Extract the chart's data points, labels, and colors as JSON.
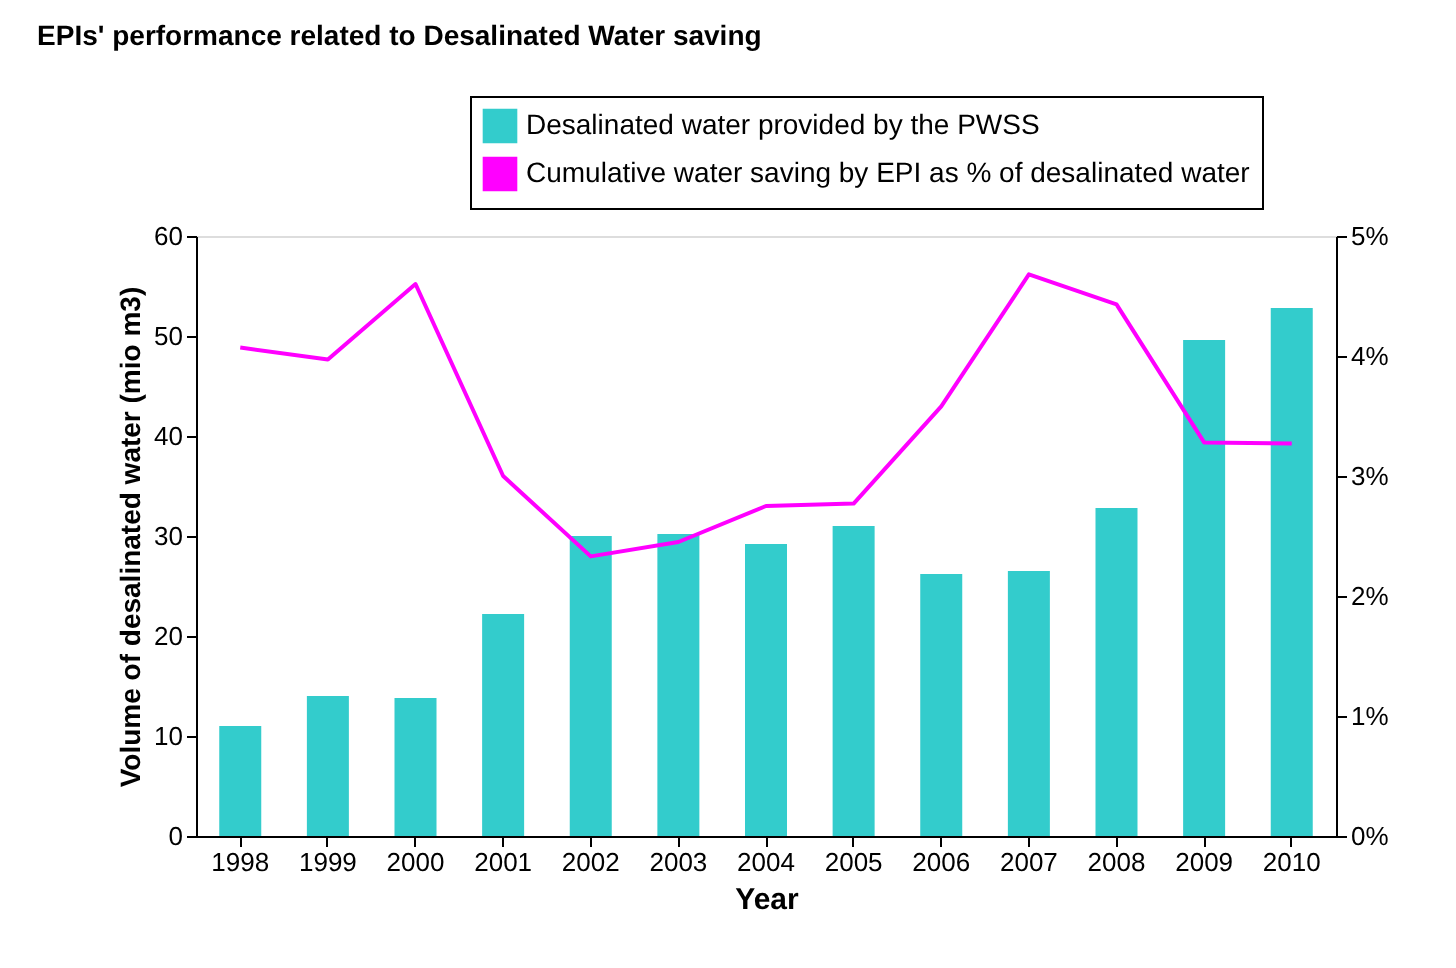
{
  "chart_data": {
    "type": "bar",
    "title": "EPIs' performance related to Desalinated Water saving",
    "xlabel": "Year",
    "ylabel": "Volume of desalinated water (mio m3)",
    "categories": [
      "1998",
      "1999",
      "2000",
      "2001",
      "2002",
      "2003",
      "2004",
      "2005",
      "2006",
      "2007",
      "2008",
      "2009",
      "2010"
    ],
    "series": [
      {
        "name": "Desalinated water provided by the PWSS",
        "color": "#33cccc",
        "values": [
          11,
          14,
          13.8,
          22.2,
          30,
          30.2,
          29.2,
          31,
          26.2,
          26.5,
          32.8,
          49.6,
          52.8
        ]
      },
      {
        "name": "Cumulative water saving by EPI as % of desalinated water",
        "type": "line",
        "axis": "y2",
        "color": "#ff00ff",
        "values": [
          4.07,
          3.97,
          4.6,
          3.0,
          2.33,
          2.45,
          2.75,
          2.77,
          3.58,
          4.68,
          4.43,
          3.28,
          3.27
        ]
      }
    ],
    "ylim": [
      0,
      60
    ],
    "yticks": [
      0,
      10,
      20,
      30,
      40,
      50,
      60
    ],
    "y2lim": [
      0,
      5
    ],
    "y2ticks": [
      {
        "value": 0,
        "label": "0%"
      },
      {
        "value": 1,
        "label": "1%"
      },
      {
        "value": 2,
        "label": "2%"
      },
      {
        "value": 3,
        "label": "3%"
      },
      {
        "value": 4,
        "label": "4%"
      },
      {
        "value": 5,
        "label": "5%"
      }
    ],
    "grid": false,
    "legend": "top right",
    "marker": "none",
    "line_style": "solid"
  }
}
